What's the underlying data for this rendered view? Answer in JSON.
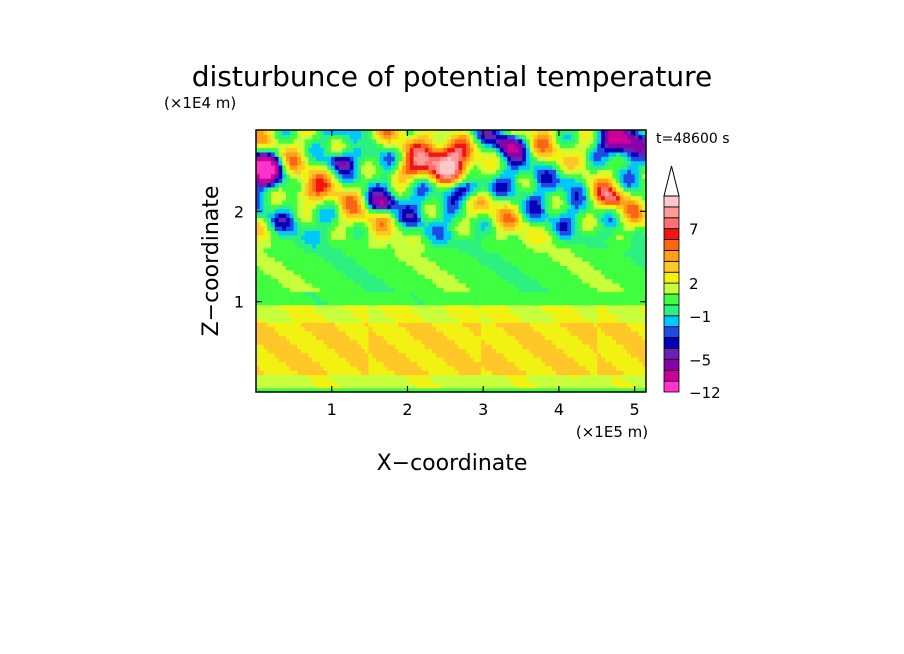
{
  "chart_data": {
    "type": "heatmap",
    "title": "disturbunce of potential temperature",
    "time_label": "t=48600 s",
    "xlabel": "X−coordinate",
    "ylabel": "Z−coordinate",
    "x_unit": "(×1E5 m)",
    "y_unit": "(×1E4 m)",
    "xlim": [
      0,
      5.15
    ],
    "ylim": [
      0,
      2.9
    ],
    "x_ticks": [
      {
        "value": 1,
        "label": "1"
      },
      {
        "value": 2,
        "label": "2"
      },
      {
        "value": 3,
        "label": "3"
      },
      {
        "value": 4,
        "label": "4"
      },
      {
        "value": 5,
        "label": "5"
      }
    ],
    "y_ticks": [
      {
        "value": 1,
        "label": "1"
      },
      {
        "value": 2,
        "label": "2"
      }
    ],
    "colorbar": {
      "levels": [
        -12,
        -10,
        -7,
        -5,
        -4,
        -3,
        -2,
        -1,
        0,
        1,
        2,
        3,
        4,
        5,
        6,
        7,
        8,
        9,
        10
      ],
      "colors": [
        "#ff33cc",
        "#cc0099",
        "#8800aa",
        "#6a1fb8",
        "#0000b4",
        "#1e4be6",
        "#00c8ff",
        "#2cf07f",
        "#40ff40",
        "#c8ff3c",
        "#f2f212",
        "#ffc828",
        "#ffa014",
        "#ff6414",
        "#f01414",
        "#ff7070",
        "#ff9b9b",
        "#ffc8c8"
      ],
      "tick_labels": [
        {
          "label": "−12",
          "level": -12
        },
        {
          "label": "−5",
          "level": -5
        },
        {
          "label": "−1",
          "level": -1
        },
        {
          "label": "2",
          "level": 2
        },
        {
          "label": "7",
          "level": 7
        }
      ],
      "extend": "max"
    },
    "field_description": "potential temperature disturbance: warm anomaly ~+3 near z=0.3-0.6; near-neutral ~0 at z~1.0-1.5; strong alternating cold (<-4) and warm (>+7) cells above z~1.7; cold cores near x~0.2,z~2.5; x~2.7,z~2.2; x~4.8,z~2.8; warm core near x~2.6,z~2.6"
  }
}
